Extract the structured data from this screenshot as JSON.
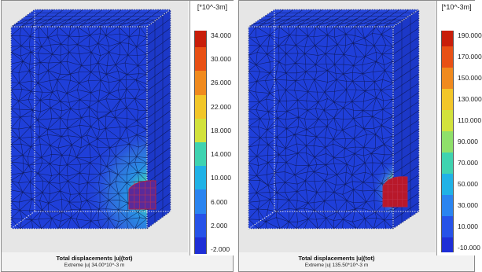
{
  "panels": [
    {
      "unit": "[*10^-3m]",
      "legend": [
        "34.000",
        "30.000",
        "26.000",
        "22.000",
        "18.000",
        "14.000",
        "10.000",
        "6.000",
        "2.000",
        "-2.000"
      ],
      "caption_title": "Total displacements |u|(tot)",
      "caption_sub": "Extreme |u| 34.00*10^-3 m",
      "hotspot": "broad-bulb",
      "colors": {
        "mesh_base": "#1f3fd9",
        "bulb": "#3a8fe0",
        "hot": "#e33a12"
      }
    },
    {
      "unit": "[*10^-3m]",
      "legend": [
        "190.000",
        "170.000",
        "150.000",
        "130.000",
        "110.000",
        "90.000",
        "70.000",
        "50.000",
        "30.000",
        "10.000",
        "-10.000"
      ],
      "caption_title": "Total displacements |u|(tot)",
      "caption_sub": "Extreme |u| 135.50*10^-3 m",
      "hotspot": "narrow-core",
      "colors": {
        "mesh_base": "#1f3fd9",
        "bulb": "#3a7be0",
        "hot": "#d81e10"
      }
    }
  ],
  "color_scale": [
    "#c81e0a",
    "#e85015",
    "#f08a1e",
    "#f2c629",
    "#d2e23c",
    "#8fe06a",
    "#3fd3b0",
    "#20b2e6",
    "#2a84f0",
    "#2652e8",
    "#1e2ed6"
  ]
}
